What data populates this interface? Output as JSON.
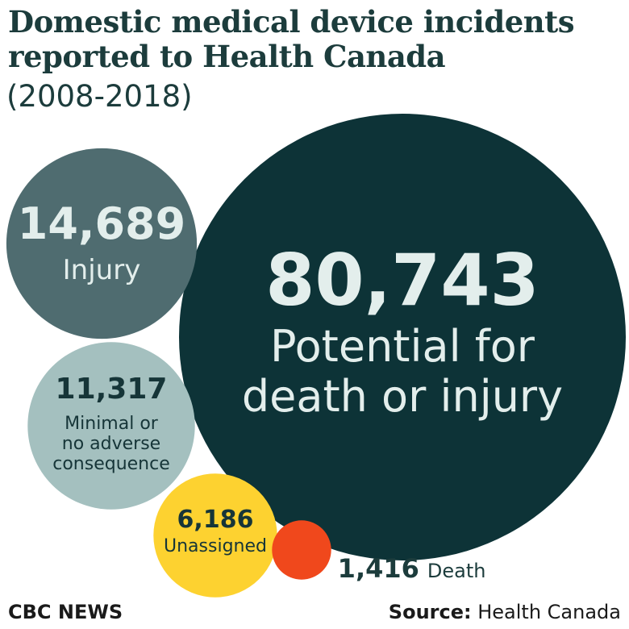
{
  "chart_data": {
    "type": "bubble",
    "title": "Domestic medical device incidents reported to Health Canada",
    "subtitle": "(2008-2018)",
    "units": "incidents",
    "bubbles": [
      {
        "key": "potential",
        "value": 80743,
        "value_label": "80,743",
        "label_lines": [
          "Potential for",
          "death or injury"
        ],
        "color": "#0d3337",
        "text_color": "#e3eeec"
      },
      {
        "key": "injury",
        "value": 14689,
        "value_label": "14,689",
        "label_lines": [
          "Injury"
        ],
        "color": "#4f6c70",
        "text_color": "#e3eeec"
      },
      {
        "key": "minimal",
        "value": 11317,
        "value_label": "11,317",
        "label_lines": [
          "Minimal or",
          "no adverse",
          "consequence"
        ],
        "color": "#a4c0bf",
        "text_color": "#163538"
      },
      {
        "key": "unassigned",
        "value": 6186,
        "value_label": "6,186",
        "label_lines": [
          "Unassigned"
        ],
        "color": "#fdd230",
        "text_color": "#163538"
      },
      {
        "key": "death",
        "value": 1416,
        "value_label": "1,416",
        "label_lines": [
          "Death"
        ],
        "color": "#f0481c",
        "text_color": "#1c3c3c"
      }
    ]
  },
  "footer": {
    "brand": "CBC NEWS",
    "source_label": "Source:",
    "source_text": "Health Canada"
  }
}
